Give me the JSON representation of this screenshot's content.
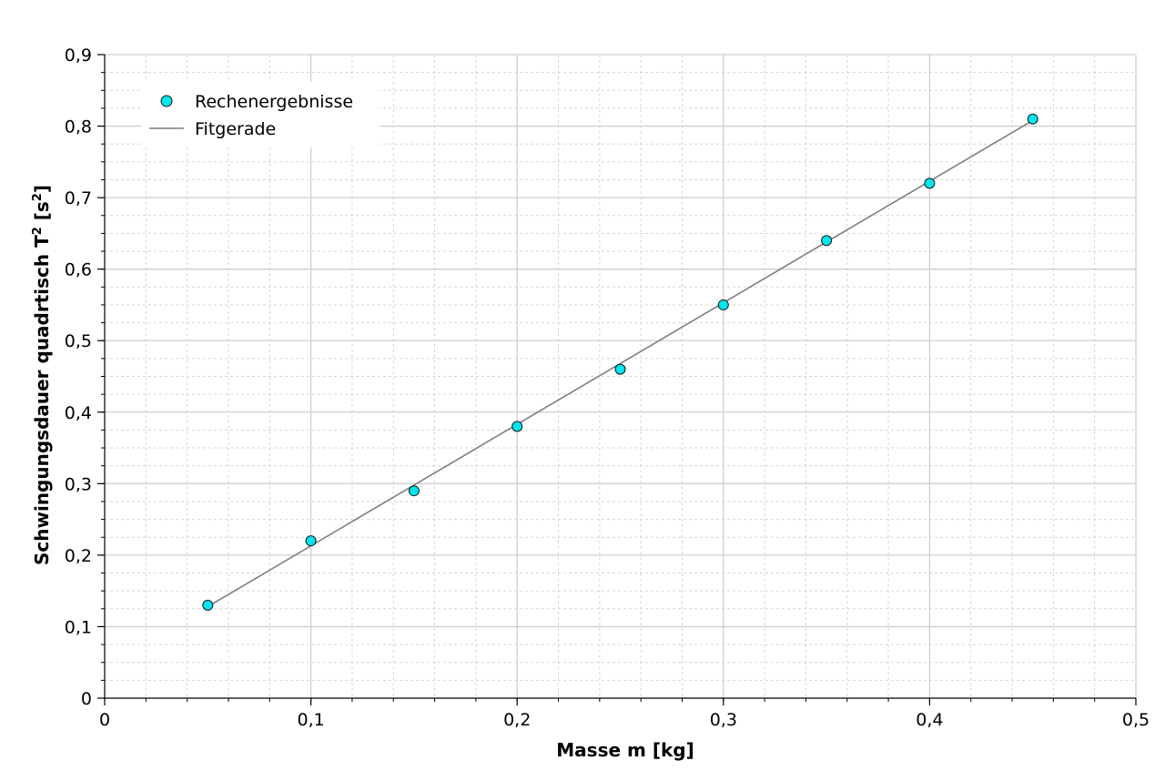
{
  "chart_data": {
    "type": "scatter",
    "xlabel": "Masse m [kg]",
    "ylabel": {
      "prefix": "Schwingungsdauer quadrtisch T",
      "sup1": "2",
      "mid": " [s",
      "sup2": "2",
      "suffix": "]"
    },
    "xlim": [
      0,
      0.5
    ],
    "ylim": [
      0,
      0.9
    ],
    "x_ticks": [
      0,
      0.1,
      0.2,
      0.3,
      0.4,
      0.5
    ],
    "x_tick_labels": [
      "0",
      "0,1",
      "0,2",
      "0,3",
      "0,4",
      "0,5"
    ],
    "y_ticks": [
      0,
      0.1,
      0.2,
      0.3,
      0.4,
      0.5,
      0.6,
      0.7,
      0.8,
      0.9
    ],
    "y_tick_labels": [
      "0",
      "0,1",
      "0,2",
      "0,3",
      "0,4",
      "0,5",
      "0,6",
      "0,7",
      "0,8",
      "0,9"
    ],
    "grid": true,
    "legend_position": "top-left",
    "series": [
      {
        "name": "Rechenergebnisse",
        "kind": "scatter",
        "color": "#00E5EE",
        "x": [
          0.05,
          0.1,
          0.15,
          0.2,
          0.25,
          0.3,
          0.35,
          0.4,
          0.45
        ],
        "y": [
          0.13,
          0.22,
          0.29,
          0.38,
          0.46,
          0.55,
          0.64,
          0.72,
          0.81
        ]
      },
      {
        "name": "Fitgerade",
        "kind": "line",
        "color": "#7F7F7F",
        "x": [
          0.05,
          0.45
        ],
        "y": [
          0.128,
          0.808
        ]
      }
    ]
  }
}
